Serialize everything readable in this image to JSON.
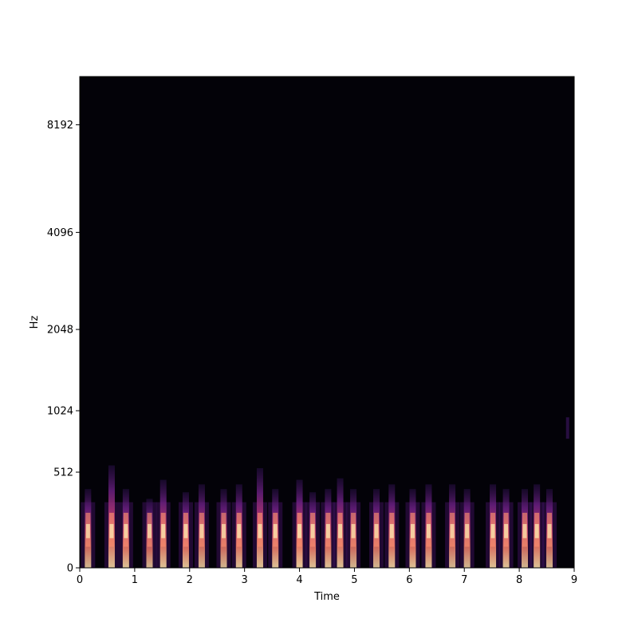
{
  "chart_data": {
    "type": "heatmap",
    "title": "",
    "xlabel": "Time",
    "ylabel": "Hz",
    "xlim": [
      0,
      9
    ],
    "ylim": [
      0,
      11025
    ],
    "y_scale": "mel",
    "colormap": "magma",
    "x_ticks": [
      0,
      1,
      2,
      3,
      4,
      5,
      6,
      7,
      8,
      9
    ],
    "y_ticks": [
      0,
      512,
      1024,
      2048,
      4096,
      8192
    ],
    "background_color": "#030208",
    "onsets": [
      {
        "t": 0.15,
        "peak_hz": 400,
        "intensity": 0.8
      },
      {
        "t": 0.58,
        "peak_hz": 560,
        "intensity": 0.85
      },
      {
        "t": 0.84,
        "peak_hz": 400,
        "intensity": 0.85
      },
      {
        "t": 1.27,
        "peak_hz": 340,
        "intensity": 0.8
      },
      {
        "t": 1.52,
        "peak_hz": 460,
        "intensity": 0.85
      },
      {
        "t": 1.93,
        "peak_hz": 380,
        "intensity": 0.85
      },
      {
        "t": 2.22,
        "peak_hz": 430,
        "intensity": 0.8
      },
      {
        "t": 2.62,
        "peak_hz": 400,
        "intensity": 0.8
      },
      {
        "t": 2.9,
        "peak_hz": 430,
        "intensity": 0.85
      },
      {
        "t": 3.28,
        "peak_hz": 540,
        "intensity": 0.85
      },
      {
        "t": 3.56,
        "peak_hz": 400,
        "intensity": 0.85
      },
      {
        "t": 4.0,
        "peak_hz": 460,
        "intensity": 0.9
      },
      {
        "t": 4.24,
        "peak_hz": 380,
        "intensity": 0.85
      },
      {
        "t": 4.52,
        "peak_hz": 400,
        "intensity": 0.85
      },
      {
        "t": 4.74,
        "peak_hz": 470,
        "intensity": 0.85
      },
      {
        "t": 4.98,
        "peak_hz": 400,
        "intensity": 0.8
      },
      {
        "t": 5.4,
        "peak_hz": 400,
        "intensity": 0.8
      },
      {
        "t": 5.68,
        "peak_hz": 430,
        "intensity": 0.85
      },
      {
        "t": 6.06,
        "peak_hz": 400,
        "intensity": 0.85
      },
      {
        "t": 6.35,
        "peak_hz": 430,
        "intensity": 0.85
      },
      {
        "t": 6.78,
        "peak_hz": 430,
        "intensity": 0.8
      },
      {
        "t": 7.05,
        "peak_hz": 400,
        "intensity": 0.8
      },
      {
        "t": 7.52,
        "peak_hz": 430,
        "intensity": 0.85
      },
      {
        "t": 7.76,
        "peak_hz": 400,
        "intensity": 0.85
      },
      {
        "t": 8.1,
        "peak_hz": 400,
        "intensity": 0.8
      },
      {
        "t": 8.32,
        "peak_hz": 430,
        "intensity": 0.85
      },
      {
        "t": 8.55,
        "peak_hz": 400,
        "intensity": 0.8
      },
      {
        "t": 8.88,
        "peak_hz": 960,
        "intensity": 0.35
      }
    ]
  }
}
